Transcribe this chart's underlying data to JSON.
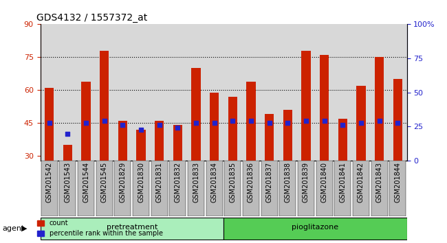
{
  "title": "GDS4132 / 1557372_at",
  "samples": [
    "GSM201542",
    "GSM201543",
    "GSM201544",
    "GSM201545",
    "GSM201829",
    "GSM201830",
    "GSM201831",
    "GSM201832",
    "GSM201833",
    "GSM201834",
    "GSM201835",
    "GSM201836",
    "GSM201837",
    "GSM201838",
    "GSM201839",
    "GSM201840",
    "GSM201841",
    "GSM201842",
    "GSM201843",
    "GSM201844"
  ],
  "counts": [
    61,
    35,
    64,
    78,
    46,
    42,
    46,
    44,
    70,
    59,
    57,
    64,
    49,
    51,
    78,
    76,
    47,
    62,
    75,
    65
  ],
  "percentile_ranks_left": [
    45,
    40,
    45,
    46,
    44,
    42,
    44,
    43,
    45,
    45,
    46,
    46,
    45,
    45,
    46,
    46,
    44,
    45,
    46,
    45
  ],
  "pretreatment_count": 10,
  "pioglitazone_count": 10,
  "bar_color": "#cc2200",
  "dot_color": "#2222cc",
  "pretreatment_color": "#aaeebb",
  "pioglitazone_color": "#55cc55",
  "plot_bg_color": "#d8d8d8",
  "xticklabel_bg": "#bbbbbb",
  "ylim_left": [
    28,
    90
  ],
  "yticks_left": [
    30,
    45,
    60,
    75,
    90
  ],
  "yticks_right": [
    0,
    25,
    50,
    75,
    100
  ],
  "left_axis_color": "#cc2200",
  "right_axis_color": "#2222cc",
  "bar_width": 0.5,
  "dot_size": 18,
  "hline_vals": [
    45,
    60,
    75
  ],
  "grid_color": "#888888",
  "title_fontsize": 10,
  "tick_fontsize": 7,
  "agent_label_fontsize": 8,
  "group_label_fontsize": 8
}
